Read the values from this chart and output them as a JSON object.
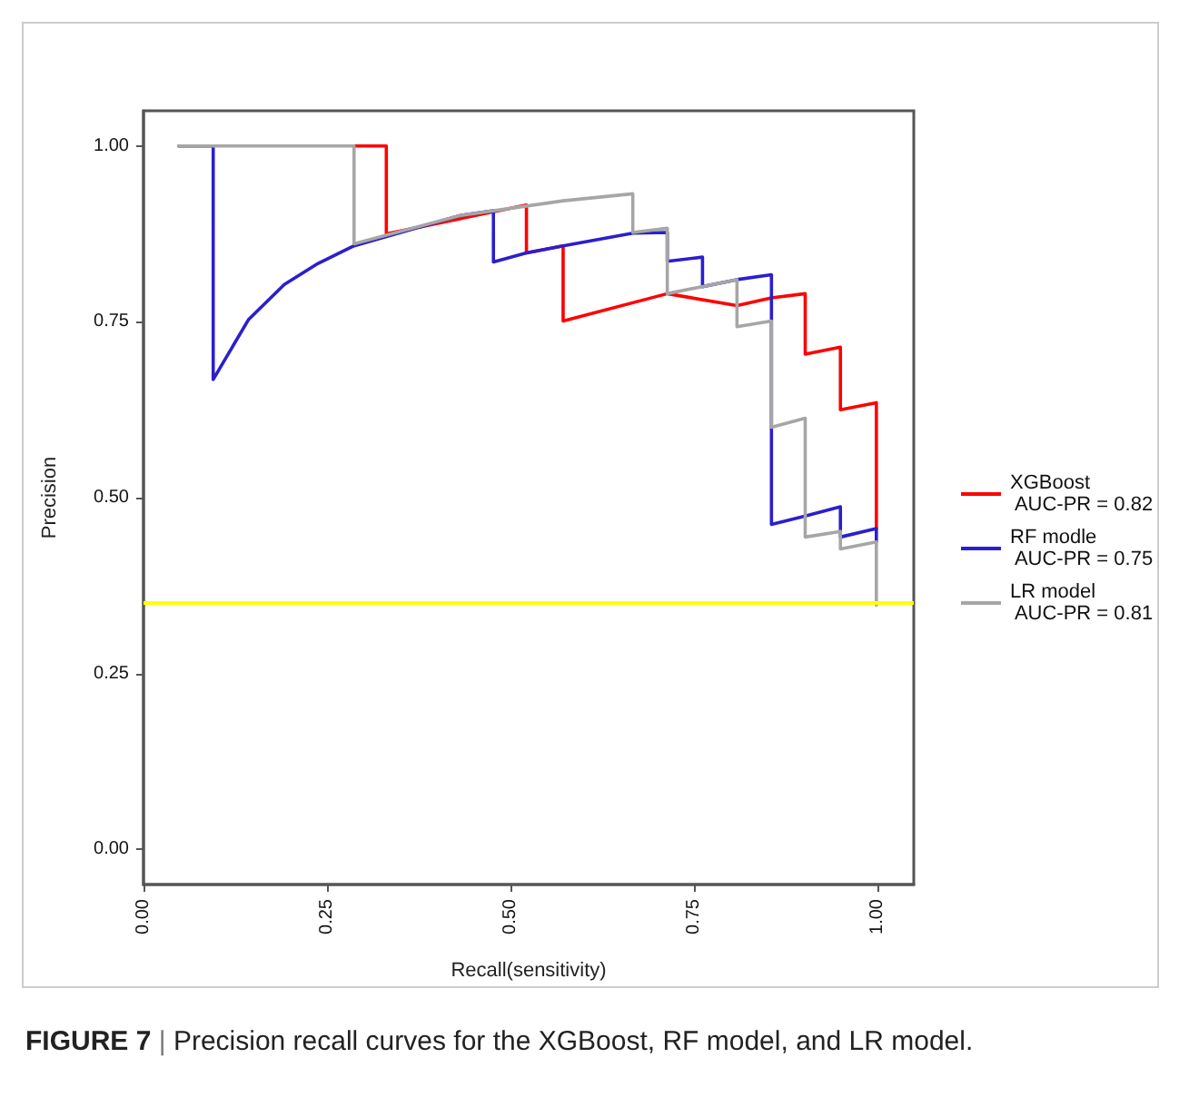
{
  "chart_data": {
    "type": "line",
    "xlabel": "Recall(sensitivity)",
    "ylabel": "Precision",
    "annotations": [
      "FIGURE 7 | Precision recall curves for the XGBoost, RF model, and LR model."
    ],
    "xlim": [
      0,
      1.05
    ],
    "ylim": [
      -0.05,
      1.05
    ],
    "xticks": [
      {
        "value": 0,
        "label": "0.00"
      },
      {
        "value": 0.25,
        "label": "0.25"
      },
      {
        "value": 0.5,
        "label": "0.50"
      },
      {
        "value": 0.75,
        "label": "0.75"
      },
      {
        "value": 1,
        "label": "1.00"
      }
    ],
    "yticks": [
      {
        "value": 0,
        "label": "0.00"
      },
      {
        "value": 0.25,
        "label": "0.25"
      },
      {
        "value": 0.5,
        "label": "0.50"
      },
      {
        "value": 0.75,
        "label": "0.75"
      },
      {
        "value": 1,
        "label": "1.00"
      }
    ],
    "grid": false,
    "legend": "right",
    "marker": "none",
    "line_style": "solid",
    "ref_lines": [
      {
        "axis": "y",
        "value": 0.347,
        "color": "#ffff00"
      }
    ],
    "series": [
      {
        "name": "XGBoost\n AUC-PR = 0.82",
        "color": "#ff0000",
        "x": [
          0.287,
          0.331,
          0.331,
          0.522,
          0.522,
          0.572,
          0.572,
          0.714,
          0.809,
          0.856,
          0.902,
          0.902,
          0.95,
          0.95,
          0.999,
          0.999
        ],
        "values": [
          1,
          1,
          0.875,
          0.916,
          0.848,
          0.858,
          0.751,
          0.79,
          0.773,
          0.784,
          0.79,
          0.704,
          0.714,
          0.625,
          0.635,
          0.456
        ]
      },
      {
        "name": "RF modle\n AUC-PR = 0.75",
        "color": "#2b1fcc",
        "x": [
          0.048,
          0.095,
          0.095,
          0.143,
          0.192,
          0.238,
          0.287,
          0.431,
          0.477,
          0.477,
          0.522,
          0.572,
          0.667,
          0.714,
          0.714,
          0.762,
          0.762,
          0.809,
          0.856,
          0.856,
          0.902,
          0.95,
          0.95,
          0.999,
          0.999
        ],
        "values": [
          1,
          1,
          0.668,
          0.753,
          0.803,
          0.833,
          0.858,
          0.901,
          0.908,
          0.835,
          0.848,
          0.858,
          0.876,
          0.877,
          0.836,
          0.842,
          0.8,
          0.81,
          0.817,
          0.462,
          0.474,
          0.487,
          0.444,
          0.456,
          0.437
        ]
      },
      {
        "name": "LR model\n AUC-PR = 0.81",
        "color": "#a6a6a6",
        "x": [
          0.048,
          0.287,
          0.287,
          0.431,
          0.572,
          0.667,
          0.667,
          0.714,
          0.714,
          0.809,
          0.809,
          0.856,
          0.856,
          0.902,
          0.902,
          0.95,
          0.95,
          0.999,
          0.999
        ],
        "values": [
          1,
          1,
          0.861,
          0.901,
          0.922,
          0.932,
          0.877,
          0.883,
          0.79,
          0.81,
          0.743,
          0.751,
          0.6,
          0.613,
          0.444,
          0.452,
          0.427,
          0.437,
          0.347
        ]
      }
    ]
  }
}
